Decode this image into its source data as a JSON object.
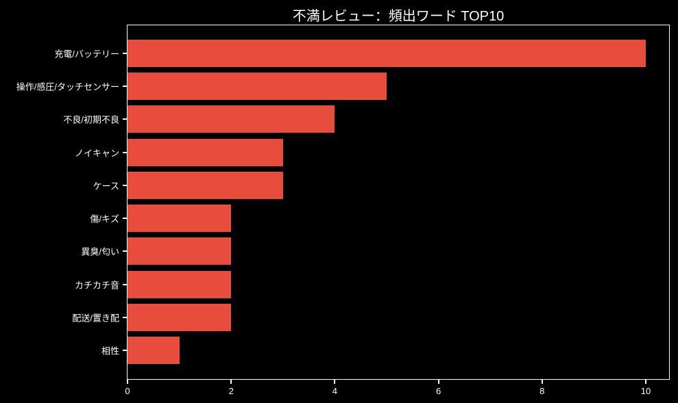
{
  "title": "不満レビュー：頻出ワード TOP10",
  "colors": {
    "background": "#000000",
    "foreground": "#ffffff",
    "bar": "#e74c3c"
  },
  "chart_data": {
    "type": "bar",
    "orientation": "horizontal",
    "title": "不満レビュー：頻出ワード TOP10",
    "categories": [
      "充電/バッテリー",
      "操作/感圧/タッチセンサー",
      "不良/初期不良",
      "ノイキャン",
      "ケース",
      "傷/キズ",
      "異臭/匂い",
      "カチカチ音",
      "配送/置き配",
      "相性"
    ],
    "values": [
      10,
      5,
      4,
      3,
      3,
      2,
      2,
      2,
      2,
      1
    ],
    "xlabel": "",
    "ylabel": "",
    "xlim": [
      0,
      10.45
    ],
    "xticks": [
      0,
      2,
      4,
      6,
      8,
      10
    ],
    "grid": false,
    "legend": false
  }
}
